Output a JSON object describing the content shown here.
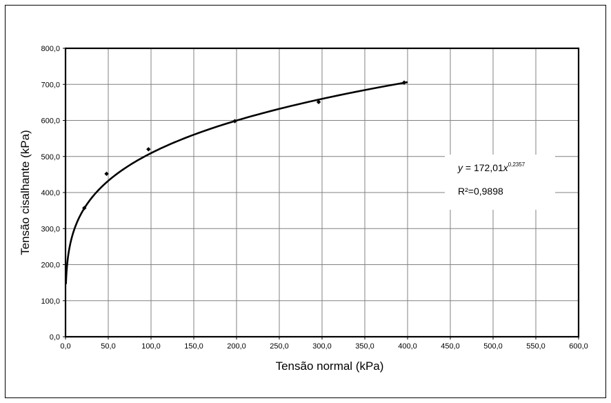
{
  "chart_data": {
    "type": "scatter",
    "xlabel": "Tensão normal (kPa)",
    "ylabel": "Tensão cisalhante (kPa)",
    "xlim": [
      0,
      600
    ],
    "ylim": [
      0,
      800
    ],
    "x_ticks": [
      "0,0",
      "50,0",
      "100,0",
      "150,0",
      "200,0",
      "250,0",
      "300,0",
      "350,0",
      "400,0",
      "450,0",
      "500,0",
      "550,0",
      "600,0"
    ],
    "y_ticks": [
      "0,0",
      "100,0",
      "200,0",
      "300,0",
      "400,0",
      "500,0",
      "600,0",
      "700,0",
      "800,0"
    ],
    "grid": true,
    "series": [
      {
        "points": [
          {
            "x": 22,
            "y": 357
          },
          {
            "x": 48,
            "y": 452
          },
          {
            "x": 97,
            "y": 520
          },
          {
            "x": 198,
            "y": 598
          },
          {
            "x": 296,
            "y": 651
          },
          {
            "x": 396,
            "y": 705
          }
        ]
      }
    ],
    "trendline": {
      "type": "power",
      "coefficient": 172.01,
      "exponent": 0.2357,
      "x_range": [
        0.5,
        400
      ]
    },
    "annotations": {
      "equation_prefix": "y",
      "equation_body": " = 172,01",
      "equation_var": "x",
      "equation_exponent": "0,2357",
      "r_squared": "R²=0,9898"
    },
    "colors": {
      "axis": "#000000",
      "grid": "#808080",
      "marker": "#000000",
      "trendline": "#000000"
    }
  }
}
